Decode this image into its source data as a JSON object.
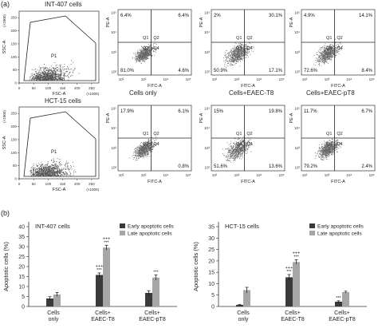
{
  "panel_labels": {
    "a": "(a)",
    "b": "(b)"
  },
  "row_labels": {
    "top": "INT-407 cells",
    "bottom": "HCT-15 cells"
  },
  "column_labels": [
    "Cells only",
    "Cells+EAEC-T8",
    "Cells+EAEC-pT8"
  ],
  "scatter": {
    "ssc_label": "SSC-A",
    "fsc_label": "FSC-A",
    "ssc_scale": "(×1000)",
    "fsc_scale": "(×1000)",
    "gate_label": "P1",
    "pe_label": "PE-A",
    "fitc_label": "FITC-A",
    "fsc_ticks": [
      "0",
      "50",
      "100",
      "150",
      "200",
      "250"
    ],
    "ssc_ticks": [
      "0",
      "50",
      "100",
      "150",
      "200",
      "250"
    ],
    "log_ticks": [
      "10²",
      "10³",
      "10⁴",
      "10⁵"
    ],
    "quadrant_names": [
      "Q1",
      "Q2",
      "Q3",
      "Q4"
    ]
  },
  "quadrants": [
    [
      "6.4%",
      "6.4%",
      "81.0%",
      "4.6%"
    ],
    [
      "2%",
      "30.1%",
      "50.9%",
      "17.1%"
    ],
    [
      "4.9%",
      "14.1%",
      "72.6%",
      "8.4%"
    ],
    [
      "17.9%",
      "6.1%",
      "",
      "0.8%"
    ],
    [
      "15%",
      "19.8%",
      "51.6%",
      "13.6%"
    ],
    [
      "11.7%",
      "6.7%",
      "79.2%",
      "2.4%"
    ]
  ],
  "chart_data": [
    {
      "type": "bar",
      "title": "INT-407 cells",
      "ylabel": "Apoptotic cells (%)",
      "categories": [
        "Cells only",
        "Cells+ EAEC-T8",
        "Cells+ EAEC-pT8"
      ],
      "series": [
        {
          "name": "Early apoptotic cells",
          "color": "#3a3a3a",
          "values": [
            4,
            15.8,
            6.8
          ],
          "errors": [
            0.9,
            1.0,
            1.1
          ]
        },
        {
          "name": "Late apoptotic cells",
          "color": "#a6a6a6",
          "values": [
            6,
            29.5,
            14.5
          ],
          "errors": [
            1.0,
            1.2,
            1.3
          ]
        }
      ],
      "annotations": [
        {
          "category": 1,
          "series": 0,
          "lines": [
            "+++",
            "***"
          ]
        },
        {
          "category": 1,
          "series": 1,
          "lines": [
            "+++",
            "***"
          ]
        },
        {
          "category": 2,
          "series": 1,
          "lines": [
            "***"
          ]
        }
      ],
      "ylim": [
        0,
        40
      ],
      "yticks": [
        0,
        5,
        10,
        15,
        20,
        25,
        30,
        35,
        40
      ],
      "legend_position": "top-right"
    },
    {
      "type": "bar",
      "title": "HCT-15 cells",
      "ylabel": "Apoptotic cells (%)",
      "categories": [
        "Cells only",
        "Cells+ EAEC-T8",
        "Cells+ EAEC-pT8"
      ],
      "series": [
        {
          "name": "Early apoptotic cells",
          "color": "#3a3a3a",
          "values": [
            0.7,
            12.8,
            2.1
          ],
          "errors": [
            0.2,
            1.2,
            0.4
          ]
        },
        {
          "name": "Late apoptotic cells",
          "color": "#a6a6a6",
          "values": [
            7.2,
            19.5,
            6.3
          ],
          "errors": [
            1.2,
            1.0,
            0.4
          ]
        }
      ],
      "annotations": [
        {
          "category": 1,
          "series": 0,
          "lines": [
            "+++",
            "***"
          ]
        },
        {
          "category": 1,
          "series": 1,
          "lines": [
            "+++",
            "***"
          ]
        },
        {
          "category": 2,
          "series": 0,
          "lines": [
            "***"
          ]
        }
      ],
      "ylim": [
        0,
        35
      ],
      "yticks": [
        0,
        5,
        10,
        15,
        20,
        25,
        30,
        35
      ],
      "legend_position": "top-right"
    }
  ]
}
